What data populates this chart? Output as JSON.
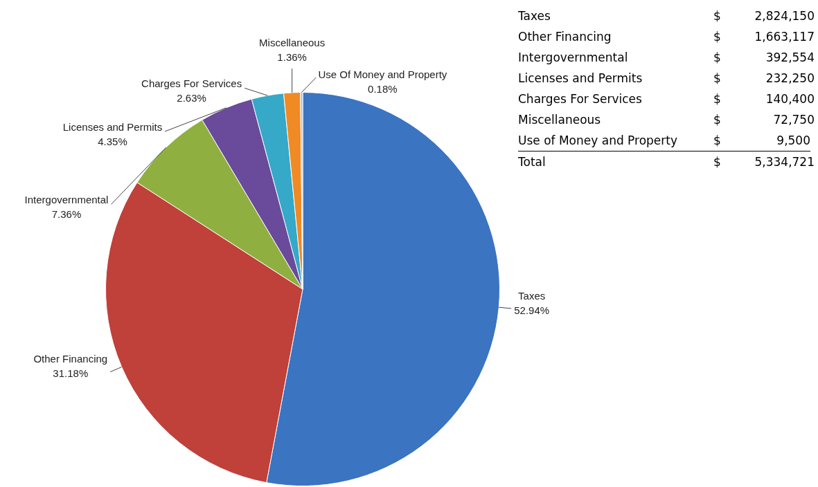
{
  "chart_data": {
    "type": "pie",
    "categories": [
      "Taxes",
      "Other Financing",
      "Intergovernmental",
      "Licenses and Permits",
      "Charges For Services",
      "Miscellaneous",
      "Use Of Money and Property"
    ],
    "values": [
      52.94,
      31.18,
      7.36,
      4.35,
      2.63,
      1.36,
      0.18
    ],
    "value_labels": [
      "52.94%",
      "31.18%",
      "7.36%",
      "4.35%",
      "2.63%",
      "1.36%",
      "0.18%"
    ],
    "colors": [
      "#3b74c0",
      "#c0403a",
      "#8fb040",
      "#6a4a9a",
      "#36a8c8",
      "#f08a24",
      "#a8c0e0"
    ],
    "legend": false,
    "annotations": [
      "Taxes",
      "$ 2,824,150",
      "Other Financing",
      "$ 1,663,117",
      "Intergovernmental",
      "$ 392,554",
      "Licenses and Permits",
      "$ 232,250",
      "Charges For Services",
      "$ 140,400",
      "Miscellaneous",
      "$ 72,750",
      "Use of Money and Property",
      "$ 9,500",
      "Total",
      "$ 5,334,721"
    ]
  }
}
